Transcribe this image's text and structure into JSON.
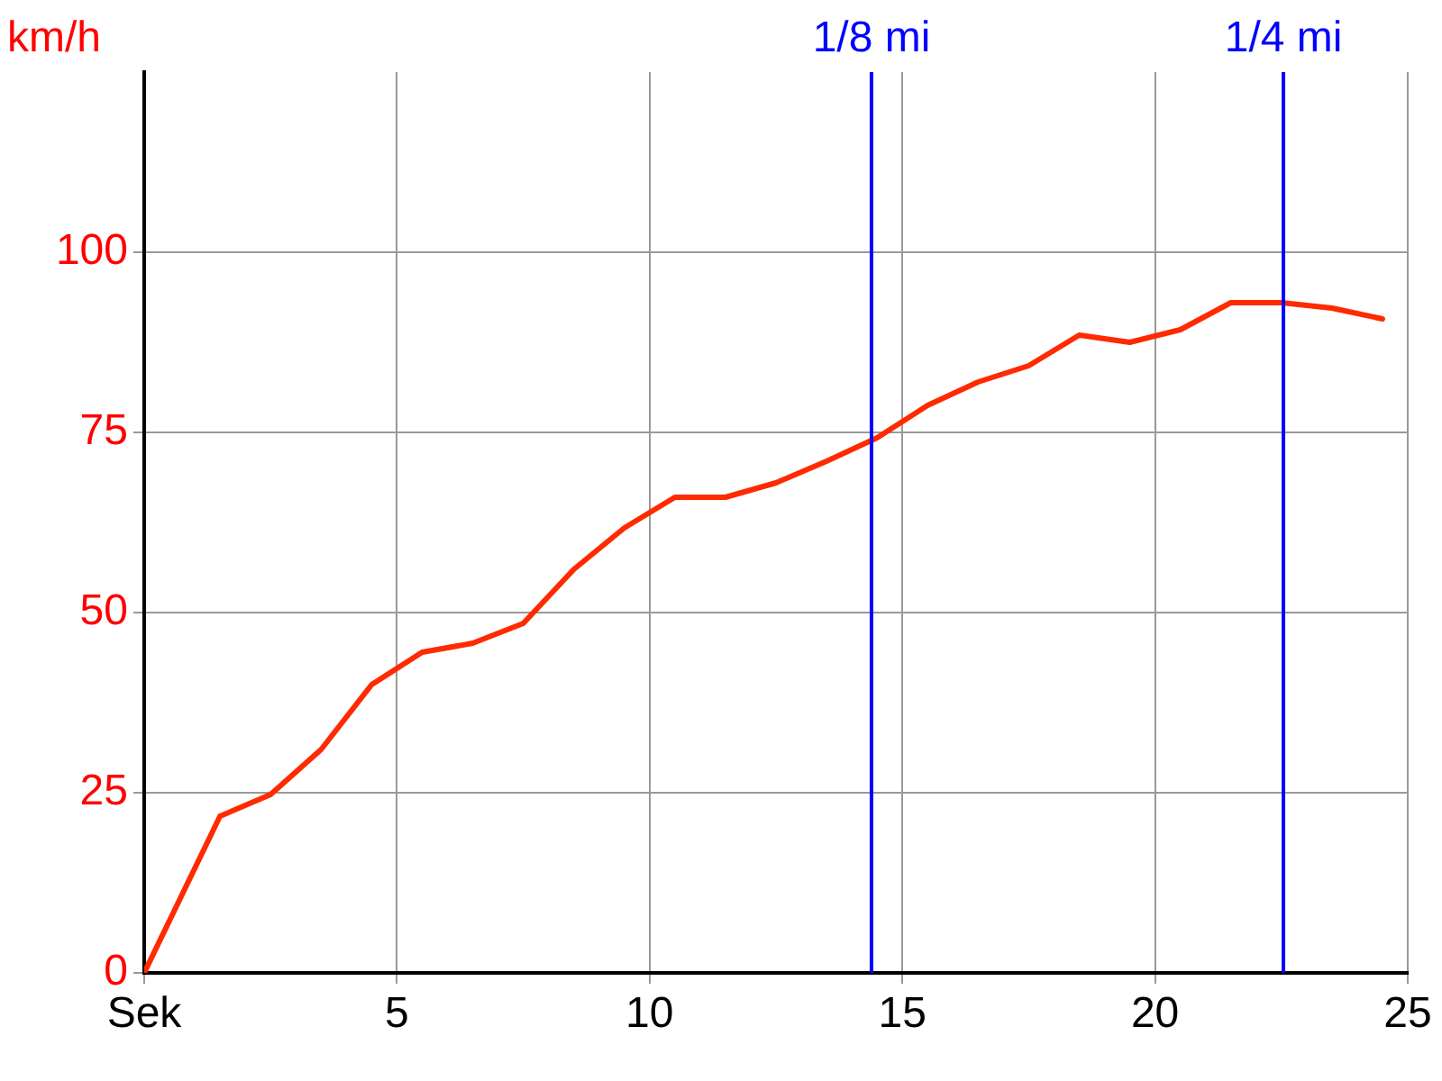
{
  "chart_data": {
    "type": "line",
    "ylabel": "km/h",
    "x": [
      0,
      1.5,
      2.5,
      3.5,
      4.5,
      5.5,
      6.5,
      7.5,
      8.5,
      9.5,
      10.5,
      11.5,
      12.5,
      13.5,
      14.5,
      15.5,
      16.5,
      17.5,
      18.5,
      19.5,
      20.5,
      21.5,
      22.5,
      23.5,
      24.5
    ],
    "series": [
      {
        "color": "#ff2a00",
        "values": [
          0,
          21.75,
          24.75,
          31,
          40,
          44.5,
          45.75,
          48.5,
          56,
          61.75,
          66,
          66,
          68,
          71,
          74.25,
          78.75,
          82,
          84.25,
          88.5,
          87.5,
          89.25,
          93,
          93,
          92.25,
          90.75
        ]
      }
    ],
    "xlim": [
      0,
      25
    ],
    "xticks": [
      {
        "value": 0,
        "label": "Sek"
      },
      5,
      10,
      15,
      20,
      25
    ],
    "ylim": [
      0,
      125
    ],
    "yticks": [
      0,
      25,
      50,
      75,
      100
    ],
    "ref_lines": [
      {
        "axis": "x",
        "value": 14.39,
        "label": "1/8 mi",
        "color": "#0000ff"
      },
      {
        "axis": "x",
        "value": 22.54,
        "label": "1/4 mi",
        "color": "#0000ff"
      }
    ],
    "grid": true,
    "legend": false,
    "marker": "none",
    "line_style": "solid"
  }
}
